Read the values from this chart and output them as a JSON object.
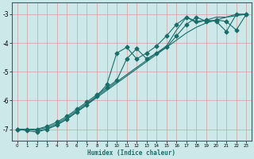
{
  "xlabel": "Humidex (Indice chaleur)",
  "background_color": "#cce8e8",
  "grid_color": "#d4a0a0",
  "line_color": "#1a6e6a",
  "xlim": [
    -0.5,
    23.5
  ],
  "ylim": [
    -7.4,
    -2.6
  ],
  "yticks": [
    -7,
    -6,
    -5,
    -4,
    -3
  ],
  "xticks": [
    0,
    1,
    2,
    3,
    4,
    5,
    6,
    7,
    8,
    9,
    10,
    11,
    12,
    13,
    14,
    15,
    16,
    17,
    18,
    19,
    20,
    21,
    22,
    23
  ],
  "s1_x": [
    0,
    1,
    2,
    3,
    4,
    5,
    6,
    7,
    8,
    9,
    10,
    11,
    12,
    13,
    14,
    15,
    16,
    17,
    18,
    19,
    20,
    21,
    22,
    23
  ],
  "s1_y": [
    -7.0,
    -7.0,
    -7.05,
    -7.0,
    -6.85,
    -6.65,
    -6.4,
    -6.15,
    -5.9,
    -5.65,
    -5.4,
    -5.15,
    -4.9,
    -4.65,
    -4.4,
    -4.15,
    -3.9,
    -3.65,
    -3.45,
    -3.3,
    -3.2,
    -3.1,
    -3.05,
    -3.0
  ],
  "s2_x": [
    0,
    1,
    2,
    3,
    4,
    5,
    6,
    7,
    8,
    9,
    10,
    11,
    12,
    13,
    14,
    15,
    16,
    17,
    18,
    19,
    20,
    21,
    22,
    23
  ],
  "s2_y": [
    -7.0,
    -7.0,
    -7.0,
    -6.9,
    -6.75,
    -6.55,
    -6.3,
    -6.05,
    -5.8,
    -5.55,
    -5.3,
    -4.55,
    -4.2,
    -4.55,
    -4.35,
    -4.15,
    -3.75,
    -3.35,
    -3.1,
    -3.25,
    -3.2,
    -3.25,
    -3.55,
    -3.0
  ],
  "s3_x": [
    0,
    1,
    2,
    3,
    4,
    5,
    6,
    7,
    8,
    9,
    10,
    11,
    12,
    13,
    14,
    15,
    16,
    17,
    18,
    19,
    20,
    21,
    22,
    23
  ],
  "s3_y": [
    -7.0,
    -7.05,
    -7.1,
    -7.0,
    -6.85,
    -6.65,
    -6.4,
    -6.15,
    -5.85,
    -5.45,
    -4.35,
    -4.15,
    -4.55,
    -4.35,
    -4.1,
    -3.75,
    -3.35,
    -3.1,
    -3.25,
    -3.2,
    -3.25,
    -3.6,
    -3.0,
    -3.0
  ],
  "s4_x": [
    0,
    1,
    2,
    3,
    4,
    5,
    6,
    7,
    8,
    9,
    10,
    11,
    12,
    13,
    14,
    15,
    16,
    17,
    18,
    19,
    20,
    21,
    22,
    23
  ],
  "s4_y": [
    -7.05,
    -7.0,
    -7.0,
    -6.95,
    -6.8,
    -6.6,
    -6.35,
    -6.1,
    -5.85,
    -5.6,
    -5.35,
    -5.1,
    -4.85,
    -4.6,
    -4.35,
    -4.1,
    -3.55,
    -3.1,
    -3.3,
    -3.2,
    -3.1,
    -3.1,
    -3.0,
    -3.0
  ]
}
